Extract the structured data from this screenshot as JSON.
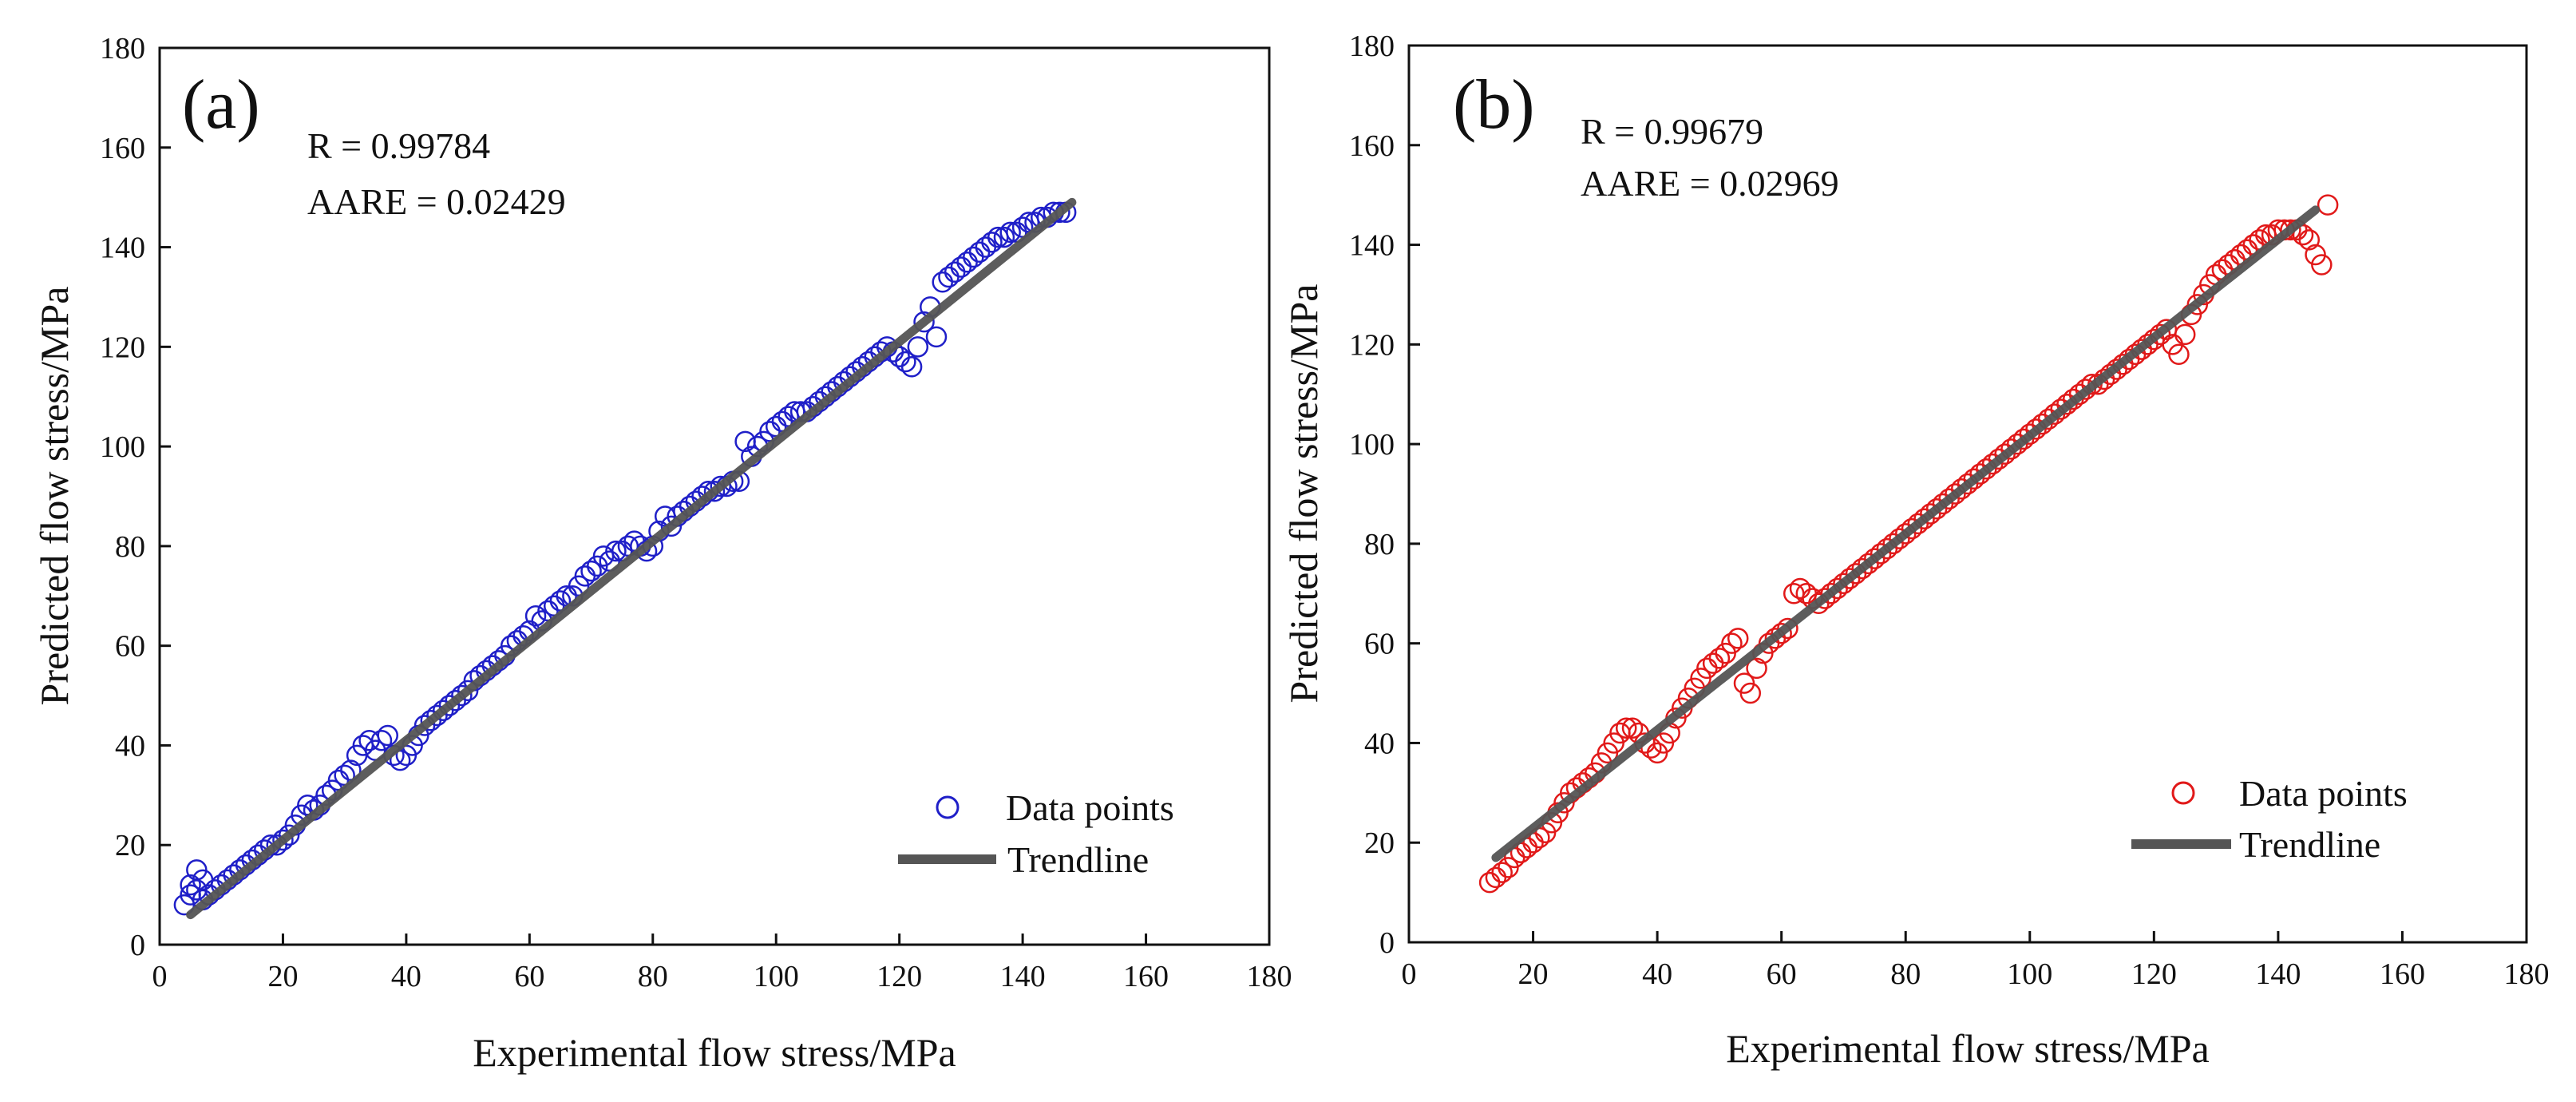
{
  "chart_data": [
    {
      "id": "a",
      "type": "scatter",
      "panel_label": "(a)",
      "xlabel": "Experimental flow stress/MPa",
      "ylabel": "Predicted flow stress/MPa",
      "xlim": [
        0,
        180
      ],
      "ylim": [
        0,
        180
      ],
      "xticks": [
        0,
        20,
        40,
        60,
        80,
        100,
        120,
        140,
        160,
        180
      ],
      "yticks": [
        0,
        20,
        40,
        60,
        80,
        100,
        120,
        140,
        160,
        180
      ],
      "stats": {
        "r": "R = 0.99784",
        "aare": "AARE = 0.02429"
      },
      "legend": {
        "points": "Data points",
        "trend": "Trendline",
        "position": "bottom-right"
      },
      "colors": {
        "points": "#1f1fc8",
        "trend": "#555555"
      },
      "trendline": {
        "x": [
          5,
          148
        ],
        "y": [
          6,
          149
        ]
      },
      "series": [
        {
          "name": "Data points",
          "x": [
            4,
            5,
            5,
            6,
            6,
            7,
            7,
            8,
            9,
            10,
            11,
            12,
            13,
            14,
            15,
            16,
            17,
            18,
            19,
            20,
            21,
            22,
            23,
            24,
            25,
            26,
            27,
            28,
            29,
            30,
            31,
            32,
            33,
            34,
            35,
            36,
            37,
            38,
            39,
            40,
            41,
            42,
            43,
            44,
            45,
            46,
            47,
            48,
            49,
            50,
            51,
            52,
            53,
            54,
            55,
            56,
            57,
            58,
            59,
            60,
            61,
            62,
            63,
            64,
            65,
            66,
            67,
            68,
            69,
            70,
            71,
            72,
            73,
            74,
            75,
            76,
            77,
            78,
            79,
            80,
            81,
            82,
            83,
            84,
            85,
            86,
            87,
            88,
            89,
            90,
            91,
            92,
            93,
            94,
            95,
            96,
            97,
            98,
            99,
            100,
            101,
            102,
            103,
            104,
            105,
            106,
            107,
            108,
            109,
            110,
            111,
            112,
            113,
            114,
            115,
            116,
            117,
            118,
            119,
            120,
            121,
            122,
            123,
            124,
            125,
            126,
            127,
            128,
            129,
            130,
            131,
            132,
            133,
            134,
            135,
            136,
            137,
            138,
            139,
            140,
            141,
            142,
            143,
            144,
            145,
            146,
            147
          ],
          "y": [
            8,
            10,
            12,
            15,
            11,
            9,
            13,
            10,
            11,
            12,
            13,
            14,
            15,
            16,
            17,
            18,
            19,
            20,
            20,
            21,
            22,
            24,
            26,
            28,
            27,
            28,
            30,
            31,
            33,
            34,
            35,
            38,
            40,
            41,
            39,
            41,
            42,
            38,
            37,
            38,
            40,
            42,
            44,
            45,
            46,
            47,
            48,
            49,
            50,
            51,
            53,
            54,
            55,
            56,
            57,
            58,
            60,
            61,
            62,
            63,
            66,
            65,
            67,
            68,
            69,
            70,
            70,
            72,
            74,
            75,
            76,
            78,
            77,
            79,
            79,
            80,
            81,
            80,
            79,
            80,
            83,
            86,
            84,
            86,
            87,
            88,
            89,
            90,
            91,
            91,
            92,
            92,
            93,
            93,
            101,
            98,
            100,
            101,
            103,
            104,
            105,
            106,
            107,
            107,
            107,
            108,
            109,
            110,
            111,
            112,
            113,
            114,
            115,
            116,
            117,
            118,
            119,
            120,
            119,
            118,
            117,
            116,
            120,
            125,
            128,
            122,
            133,
            134,
            135,
            136,
            137,
            138,
            139,
            140,
            141,
            142,
            142,
            143,
            143,
            144,
            145,
            145,
            146,
            146,
            147,
            147,
            147
          ]
        }
      ]
    },
    {
      "id": "b",
      "type": "scatter",
      "panel_label": "(b)",
      "xlabel": "Experimental flow stress/MPa",
      "ylabel": "Predicted flow stress/MPa",
      "xlim": [
        0,
        180
      ],
      "ylim": [
        0,
        180
      ],
      "xticks": [
        0,
        20,
        40,
        60,
        80,
        100,
        120,
        140,
        160,
        180
      ],
      "yticks": [
        0,
        20,
        40,
        60,
        80,
        100,
        120,
        140,
        160,
        180
      ],
      "stats": {
        "r": "R = 0.99679",
        "aare": "AARE = 0.02969"
      },
      "legend": {
        "points": "Data points",
        "trend": "Trendline",
        "position": "bottom-right"
      },
      "colors": {
        "points": "#e11919",
        "trend": "#555555"
      },
      "trendline": {
        "x": [
          14,
          146
        ],
        "y": [
          17,
          147
        ]
      },
      "series": [
        {
          "name": "Data points",
          "x": [
            13,
            14,
            15,
            16,
            17,
            18,
            19,
            20,
            21,
            22,
            23,
            24,
            25,
            26,
            27,
            28,
            29,
            30,
            31,
            32,
            33,
            34,
            35,
            36,
            37,
            38,
            39,
            40,
            41,
            42,
            43,
            44,
            45,
            46,
            47,
            48,
            49,
            50,
            51,
            52,
            53,
            54,
            55,
            56,
            57,
            58,
            59,
            60,
            61,
            62,
            63,
            64,
            65,
            66,
            67,
            68,
            69,
            70,
            71,
            72,
            73,
            74,
            75,
            76,
            77,
            78,
            79,
            80,
            81,
            82,
            83,
            84,
            85,
            86,
            87,
            88,
            89,
            90,
            91,
            92,
            93,
            94,
            95,
            96,
            97,
            98,
            99,
            100,
            101,
            102,
            103,
            104,
            105,
            106,
            107,
            108,
            109,
            110,
            111,
            112,
            113,
            114,
            115,
            116,
            117,
            118,
            119,
            120,
            121,
            122,
            123,
            124,
            125,
            126,
            127,
            128,
            129,
            130,
            131,
            132,
            133,
            134,
            135,
            136,
            137,
            138,
            139,
            140,
            141,
            142,
            143,
            144,
            145,
            146,
            147,
            148
          ],
          "y": [
            12,
            13,
            14,
            15,
            17,
            18,
            19,
            20,
            21,
            22,
            24,
            26,
            28,
            30,
            31,
            32,
            33,
            34,
            36,
            38,
            40,
            42,
            43,
            43,
            42,
            40,
            39,
            38,
            40,
            42,
            45,
            47,
            49,
            51,
            53,
            55,
            56,
            57,
            58,
            60,
            61,
            52,
            50,
            55,
            58,
            60,
            61,
            62,
            63,
            70,
            71,
            70,
            69,
            68,
            69,
            70,
            71,
            72,
            73,
            74,
            75,
            76,
            77,
            78,
            79,
            80,
            81,
            82,
            83,
            84,
            85,
            86,
            87,
            88,
            89,
            90,
            91,
            92,
            93,
            94,
            95,
            96,
            97,
            98,
            99,
            100,
            101,
            102,
            103,
            104,
            105,
            106,
            107,
            108,
            109,
            110,
            111,
            112,
            112,
            113,
            114,
            115,
            116,
            117,
            118,
            119,
            120,
            121,
            122,
            123,
            120,
            118,
            122,
            126,
            128,
            130,
            132,
            134,
            135,
            136,
            137,
            138,
            139,
            140,
            141,
            142,
            142,
            143,
            143,
            143,
            143,
            142,
            141,
            138,
            136,
            148
          ]
        }
      ]
    }
  ]
}
